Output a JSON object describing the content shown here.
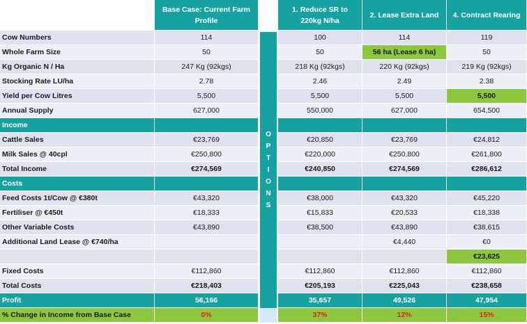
{
  "columns": {
    "base": "Base Case: Current Farm Profile",
    "opt1": "1. Reduce SR to 220kg N/ha",
    "opt2": "2. Lease Extra Land",
    "opt4": "4. Contract Rearing",
    "options_label": "OPTIONS"
  },
  "rows": [
    {
      "label": "Cow Numbers",
      "base": "114",
      "o1": "100",
      "o2": "114",
      "o4": "119"
    },
    {
      "label": "Whole Farm Size",
      "base": "50",
      "o1": "50",
      "o2": "56 ha (Lease 6 ha)",
      "o4": "50"
    },
    {
      "label": "Kg Organic N / Ha",
      "base": "247 Kg (92kgs)",
      "o1": "218 Kg (92kgs)",
      "o2": "220 Kg (92kgs)",
      "o4": "219 Kg (92kgs)"
    },
    {
      "label": "Stocking Rate LU/ha",
      "base": "2.78",
      "o1": "2.46",
      "o2": "2.49",
      "o4": "2.38"
    },
    {
      "label": "Yield per Cow Litres",
      "base": "5,500",
      "o1": "5,500",
      "o2": "5,500",
      "o4": "5,500"
    },
    {
      "label": "Annual Supply",
      "base": "627,000",
      "o1": "550,000",
      "o2": "627,000",
      "o4": "654,500"
    },
    {
      "label": "Income"
    },
    {
      "label": "Cattle Sales",
      "base": "€23,769",
      "o1": "€20,850",
      "o2": "€23,769",
      "o4": "€24,812"
    },
    {
      "label": "Milk Sales @ 40cpl",
      "base": "€250,800",
      "o1": "€220,000",
      "o2": "€250,800",
      "o4": "€261,800"
    },
    {
      "label": "Total Income",
      "base": "€274,569",
      "o1": "€240,850",
      "o2": "€274,569",
      "o4": "€286,612"
    },
    {
      "label": "Costs"
    },
    {
      "label": "Feed Costs 1t/Cow @ €380t",
      "base": "€43,320",
      "o1": "€38,000",
      "o2": "€43,320",
      "o4": "€45,220"
    },
    {
      "label": "Fertiliser @ €450t",
      "base": "€18,333",
      "o1": "€15,833",
      "o2": "€20,533",
      "o4": "€18,338"
    },
    {
      "label": "Other Variable Costs",
      "base": "€43,890",
      "o1": "€38,500",
      "o2": "€43,890",
      "o4": "€38,615"
    },
    {
      "label": "Additional Land Lease @ €740/ha",
      "base": "",
      "o1": "",
      "o2": "€4,440",
      "o4": "€0"
    },
    {
      "label": "",
      "base": "",
      "o1": "",
      "o2": "",
      "o4": "€23,625"
    },
    {
      "label": "Fixed Costs",
      "base": "€112,860",
      "o1": "€112,860",
      "o2": "€112,860",
      "o4": "€112,860"
    },
    {
      "label": "Total Costs",
      "base": "€218,403",
      "o1": "€205,193",
      "o2": "€225,043",
      "o4": "€238,658"
    },
    {
      "label": "Profit",
      "base": "56,166",
      "o1": "35,657",
      "o2": "49,526",
      "o4": "47,954"
    },
    {
      "label": "% Change in Income from Base Case",
      "base": "0%",
      "o1": "37%",
      "o2": "12%",
      "o4": "15%"
    }
  ]
}
